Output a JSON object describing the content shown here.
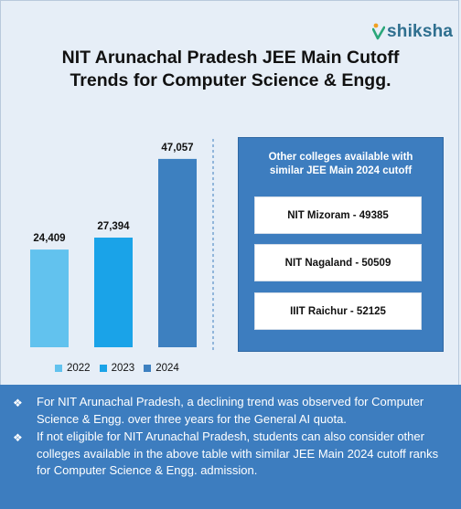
{
  "brand": {
    "name": "shiksha",
    "logo_icon": "shiksha-logo-icon",
    "color": "#2f6f8f"
  },
  "title_line1": "NIT Arunachal Pradesh JEE Main Cutoff",
  "title_line2": "Trends for Computer Science & Engg.",
  "chart_data": {
    "type": "bar",
    "title": "NIT Arunachal Pradesh JEE Main Cutoff Trends for Computer Science & Engg.",
    "categories": [
      "2022",
      "2023",
      "2024"
    ],
    "values": [
      24409,
      27394,
      47057
    ],
    "value_labels": [
      "24,409",
      "27,394",
      "47,057"
    ],
    "colors": [
      "#62c2ee",
      "#1aa3e8",
      "#3d80c0"
    ],
    "ylim": [
      0,
      50000
    ],
    "grid": false,
    "legend": "bottom"
  },
  "legend": [
    {
      "label": "2022",
      "color": "#62c2ee"
    },
    {
      "label": "2023",
      "color": "#1aa3e8"
    },
    {
      "label": "2024",
      "color": "#3d80c0"
    }
  ],
  "panel": {
    "title_line1": "Other colleges available with",
    "title_line2": "similar JEE Main 2024 cutoff",
    "colleges": [
      "NIT Mizoram - 49385",
      "NIT Nagaland - 50509",
      "IIIT Raichur - 52125"
    ]
  },
  "notes": {
    "bullet_icon": "diamond-bullet-icon",
    "items": [
      "For NIT Arunachal Pradesh, a declining trend was observed for Computer Science & Engg. over three years for the General AI quota.",
      "If not eligible for NIT Arunachal Pradesh, students can also consider other colleges available in the above table with similar JEE Main 2024 cutoff ranks for Computer Science & Engg. admission."
    ]
  }
}
